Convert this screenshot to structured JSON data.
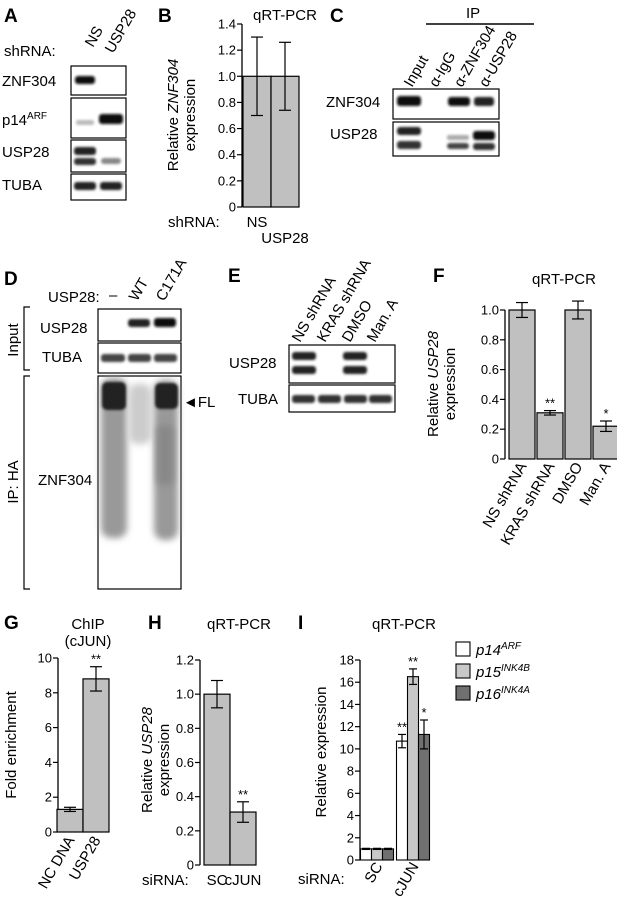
{
  "panel_letters": [
    "A",
    "B",
    "C",
    "D",
    "E",
    "F",
    "G",
    "H",
    "I"
  ],
  "blot_a": {
    "shrna_label": "shRNA:",
    "lanes": [
      "NS",
      "USP28"
    ],
    "rows": [
      "ZNF304",
      "p14",
      "USP28",
      "TUBA"
    ],
    "row_sup": "ARF"
  },
  "blot_c": {
    "ip_label": "IP",
    "lanes": [
      "Input",
      "α-IgG",
      "α-ZNF304",
      "α-USP28"
    ],
    "rows": [
      "ZNF304",
      "USP28"
    ]
  },
  "blot_d": {
    "usp28_label": "USP28:",
    "lanes": [
      "–",
      "WT",
      "C171A"
    ],
    "input_rows": [
      "USP28",
      "TUBA"
    ],
    "ip_row": "ZNF304",
    "group_input": "Input",
    "group_ip": "IP: HA",
    "fl_label": "◄FL"
  },
  "blot_e": {
    "lanes": [
      "NS shRNA",
      "KRAS shRNA",
      "DMSO",
      "Man. A"
    ],
    "rows": [
      "USP28",
      "TUBA"
    ]
  },
  "si_label": "siRNA:",
  "shrna_label": "shRNA:",
  "chart_data": [
    {
      "panel": "B",
      "type": "bar",
      "title": "qRT-PCR",
      "ylabel_pre": "Relative ",
      "ylabel_italic": "ZNF304",
      "ylabel_line2": "expression",
      "categories": [
        "NS",
        "USP28"
      ],
      "values": [
        1.0,
        1.0
      ],
      "errors": [
        0.3,
        0.26
      ],
      "stars": [
        "",
        ""
      ],
      "ylim": [
        0,
        1.4
      ],
      "yticks": [
        "0",
        "0.2",
        "0.4",
        "0.6",
        "0.8",
        "1.0",
        "1.2",
        "1.4"
      ],
      "color": "#c0c0c0"
    },
    {
      "panel": "F",
      "type": "bar",
      "title": "qRT-PCR",
      "ylabel_pre": "Relative ",
      "ylabel_italic": "USP28",
      "ylabel_line2": "expression",
      "categories": [
        "NS shRNA",
        "KRAS shRNA",
        "DMSO",
        "Man. A"
      ],
      "values": [
        1.0,
        0.31,
        1.0,
        0.22
      ],
      "errors": [
        0.05,
        0.015,
        0.06,
        0.035
      ],
      "stars": [
        "",
        "**",
        "",
        "*"
      ],
      "ylim": [
        0,
        1.0
      ],
      "yticks": [
        "0",
        "0.2",
        "0.4",
        "0.6",
        "0.8",
        "1.0"
      ],
      "color": "#c0c0c0"
    },
    {
      "panel": "G",
      "type": "bar",
      "title": "ChIP",
      "subtitle": "(cJUN)",
      "ylabel": "Fold enrichment",
      "categories": [
        "NC DNA",
        "USP28"
      ],
      "values": [
        1.3,
        8.8
      ],
      "errors": [
        0.12,
        0.7
      ],
      "stars": [
        "",
        "**"
      ],
      "ylim": [
        0,
        10
      ],
      "yticks": [
        "0",
        "2",
        "4",
        "6",
        "8",
        "10"
      ],
      "color": "#c0c0c0"
    },
    {
      "panel": "H",
      "type": "bar",
      "title": "qRT-PCR",
      "ylabel_pre": "Relative ",
      "ylabel_italic": "USP28",
      "ylabel_line2": "expression",
      "categories": [
        "SC",
        "cJUN"
      ],
      "values": [
        1.0,
        0.31
      ],
      "errors": [
        0.08,
        0.06
      ],
      "stars": [
        "",
        "**"
      ],
      "ylim": [
        0,
        1.2
      ],
      "yticks": [
        "0",
        "0.2",
        "0.4",
        "0.6",
        "0.8",
        "1.0",
        "1.2"
      ],
      "color": "#c0c0c0"
    },
    {
      "panel": "I",
      "type": "bar",
      "title": "qRT-PCR",
      "ylabel": "Relative expression",
      "categories": [
        "SC",
        "cJUN"
      ],
      "ylim": [
        0,
        18
      ],
      "yticks": [
        "0",
        "2",
        "4",
        "6",
        "8",
        "10",
        "12",
        "14",
        "16",
        "18"
      ],
      "series": [
        {
          "name": "p14",
          "sup": "ARF",
          "color": "#ffffff",
          "values": [
            1.0,
            10.7
          ],
          "errors": [
            0.05,
            0.6
          ],
          "stars": [
            "",
            "**"
          ]
        },
        {
          "name": "p15",
          "sup": "INK4B",
          "color": "#c8c8c8",
          "values": [
            1.0,
            16.5
          ],
          "errors": [
            0.05,
            0.7
          ],
          "stars": [
            "",
            "**"
          ]
        },
        {
          "name": "p16",
          "sup": "INK4A",
          "color": "#707070",
          "values": [
            1.0,
            11.3
          ],
          "errors": [
            0.05,
            1.3
          ],
          "stars": [
            "",
            "*"
          ]
        }
      ]
    }
  ]
}
